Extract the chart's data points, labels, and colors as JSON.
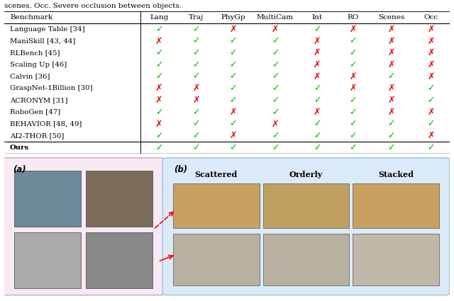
{
  "caption_text": "scenes. Occ. Severe occlusion between objects.",
  "headers": [
    "Benchmark",
    "Lang",
    "Traj",
    "PhyGp",
    "MultiCam",
    "Int",
    "RO",
    "Scenes",
    "Occ"
  ],
  "rows": [
    {
      "name": "Language Table [34]",
      "values": [
        1,
        1,
        0,
        0,
        1,
        0,
        0,
        0
      ]
    },
    {
      "name": "ManiSkill [43, 44]",
      "values": [
        0,
        1,
        1,
        1,
        0,
        1,
        0,
        0
      ]
    },
    {
      "name": "RLBench [45]",
      "values": [
        1,
        1,
        1,
        1,
        0,
        1,
        0,
        0
      ]
    },
    {
      "name": "Scaling Up [46]",
      "values": [
        1,
        1,
        1,
        1,
        0,
        1,
        0,
        0
      ]
    },
    {
      "name": "Calvin [36]",
      "values": [
        1,
        1,
        1,
        1,
        0,
        0,
        1,
        0
      ]
    },
    {
      "name": "GraspNet-1Billion [30]",
      "values": [
        0,
        0,
        1,
        1,
        1,
        0,
        0,
        1
      ]
    },
    {
      "name": "ACRONYM [31]",
      "values": [
        0,
        0,
        1,
        1,
        1,
        1,
        0,
        1
      ]
    },
    {
      "name": "RoboGen [47]",
      "values": [
        1,
        1,
        0,
        1,
        0,
        1,
        0,
        0
      ]
    },
    {
      "name": "BEHAVIOR [48, 49]",
      "values": [
        0,
        1,
        1,
        0,
        1,
        1,
        1,
        1
      ]
    },
    {
      "name": "AI2-THOR [50]",
      "values": [
        1,
        1,
        0,
        1,
        1,
        1,
        1,
        0
      ]
    },
    {
      "name": "Ours",
      "values": [
        1,
        1,
        1,
        1,
        1,
        1,
        1,
        1
      ]
    }
  ],
  "check_color": "#00bb00",
  "cross_color": "#ee0000",
  "panel_a_bg": "#f8eaf4",
  "panel_b_bg": "#daeaf8",
  "panel_a_border": "#d4aed4",
  "panel_b_border": "#a8c8e8",
  "panel_b_labels": [
    "Scattered",
    "Orderly",
    "Stacked"
  ],
  "panel_a_label": "(a)",
  "panel_b_label": "(b)",
  "img_placeholder_color_a": "#888888",
  "img_placeholder_color_b_top": "#c8a070",
  "img_placeholder_color_b_bot": "#c0b090"
}
